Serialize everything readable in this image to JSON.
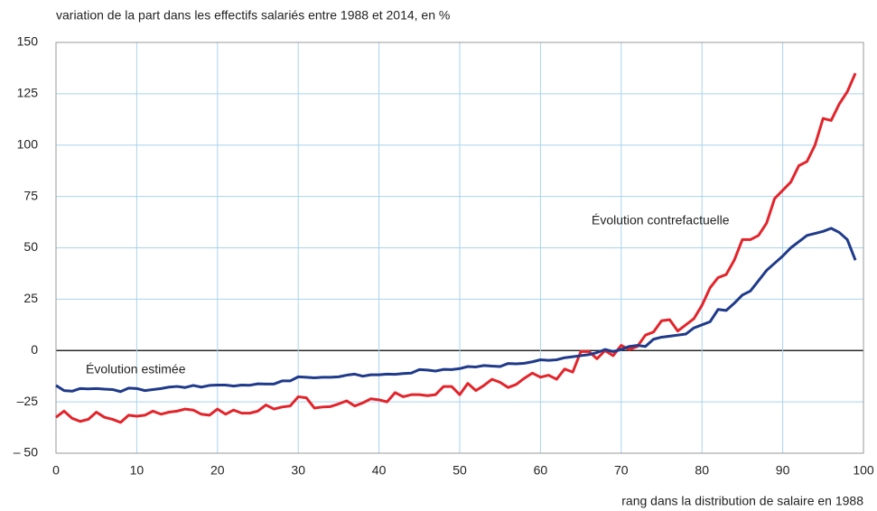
{
  "chart_data": {
    "type": "line",
    "y_label": "variation de la part dans les effectifs salariés entre 1988 et 2014, en %",
    "x_label": "rang dans la distribution de salaire en 1988",
    "x": [
      0,
      1,
      2,
      3,
      4,
      5,
      6,
      7,
      8,
      9,
      10,
      11,
      12,
      13,
      14,
      15,
      16,
      17,
      18,
      19,
      20,
      21,
      22,
      23,
      24,
      25,
      26,
      27,
      28,
      29,
      30,
      31,
      32,
      33,
      34,
      35,
      36,
      37,
      38,
      39,
      40,
      41,
      42,
      43,
      44,
      45,
      46,
      47,
      48,
      49,
      50,
      51,
      52,
      53,
      54,
      55,
      56,
      57,
      58,
      59,
      60,
      61,
      62,
      63,
      64,
      65,
      66,
      67,
      68,
      69,
      70,
      71,
      72,
      73,
      74,
      75,
      76,
      77,
      78,
      79,
      80,
      81,
      82,
      83,
      84,
      85,
      86,
      87,
      88,
      89,
      90,
      91,
      92,
      93,
      94,
      95,
      96,
      97,
      98,
      99
    ],
    "series": [
      {
        "name": "Évolution contrefactuelle",
        "color": "#e3242b",
        "values": [
          -32.5,
          -29.5,
          -33,
          -34.5,
          -33.5,
          -30,
          -32.5,
          -33.5,
          -35,
          -31.5,
          -32,
          -31.5,
          -29.5,
          -31,
          -30,
          -29.5,
          -28.5,
          -29,
          -31,
          -31.5,
          -28.5,
          -31,
          -29,
          -30.5,
          -30.5,
          -29.5,
          -26.5,
          -28.5,
          -27.5,
          -27,
          -22.5,
          -23,
          -28,
          -27.5,
          -27.3,
          -26,
          -24.5,
          -27,
          -25.5,
          -23.5,
          -24,
          -25,
          -20.5,
          -22.5,
          -21.5,
          -21.5,
          -22,
          -21.5,
          -17.5,
          -17.5,
          -21.5,
          -16,
          -19.5,
          -17,
          -14,
          -15.5,
          -18,
          -16.5,
          -13.5,
          -11,
          -13,
          -12,
          -14,
          -9,
          -10.5,
          -0.5,
          -0.5,
          -4,
          0,
          -2.5,
          2.5,
          0.5,
          2,
          7.5,
          9,
          14.5,
          15,
          9.5,
          12.5,
          15.5,
          22,
          30.5,
          35.5,
          37,
          44,
          54,
          54,
          56,
          62,
          74,
          78,
          82,
          90,
          92,
          100,
          113,
          112,
          120,
          126,
          135
        ]
      },
      {
        "name": "Évolution estimée",
        "color": "#1f3a8a",
        "values": [
          -17,
          -19.5,
          -19.8,
          -18.5,
          -18.7,
          -18.5,
          -18.8,
          -19,
          -20,
          -18.3,
          -18.5,
          -19.5,
          -19,
          -18.5,
          -17.8,
          -17.5,
          -18,
          -17,
          -17.8,
          -17,
          -16.8,
          -16.8,
          -17.3,
          -16.8,
          -16.9,
          -16.2,
          -16.3,
          -16.3,
          -14.8,
          -14.8,
          -12.8,
          -13,
          -13.3,
          -13,
          -13,
          -12.8,
          -12,
          -11.5,
          -12.5,
          -11.8,
          -11.8,
          -11.5,
          -11.6,
          -11.2,
          -11,
          -9.3,
          -9.5,
          -10,
          -9.2,
          -9.3,
          -8.8,
          -7.8,
          -8,
          -7.3,
          -7.6,
          -7.8,
          -6.3,
          -6.5,
          -6.2,
          -5.5,
          -4.5,
          -4.8,
          -4.5,
          -3.5,
          -3,
          -2.5,
          -2,
          -1,
          0.5,
          -0.5,
          0.5,
          2,
          2.5,
          2,
          5.5,
          6.5,
          7,
          7.5,
          8,
          11,
          12.5,
          14,
          20,
          19.5,
          23,
          27,
          29,
          34,
          39,
          42.5,
          46,
          50,
          53,
          56,
          57,
          58,
          59.5,
          57.5,
          54,
          44
        ]
      }
    ],
    "xlim": [
      0,
      100
    ],
    "xticks": [
      0,
      10,
      20,
      30,
      40,
      50,
      60,
      70,
      80,
      90,
      100
    ],
    "ylim": [
      -50,
      150
    ],
    "yticks": [
      {
        "value": -50,
        "label": "– 50"
      },
      {
        "value": -25,
        "label": "–25"
      },
      0,
      25,
      50,
      75,
      100,
      125,
      150
    ],
    "grid": true
  }
}
